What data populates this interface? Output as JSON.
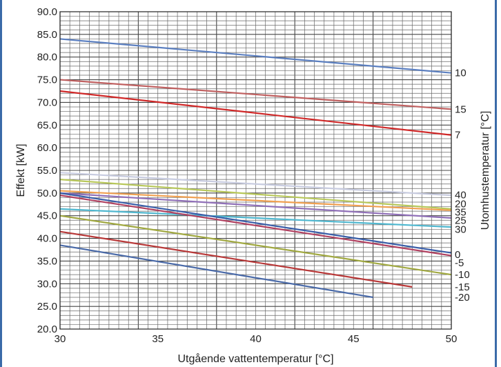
{
  "chart_data": {
    "type": "line",
    "xlabel": "Utgående vattentemperatur [°C]",
    "ylabel": "Effekt  [kW]",
    "right_label": "Utomhustemperatur [°C]",
    "xlim": [
      30,
      50
    ],
    "ylim": [
      20,
      90
    ],
    "x_ticks": [
      "30",
      "35",
      "40",
      "45",
      "50"
    ],
    "y_ticks": [
      "20.0",
      "25.0",
      "30.0",
      "35.0",
      "40.0",
      "45.0",
      "50.0",
      "55.0",
      "60.0",
      "65.0",
      "70.0",
      "75.0",
      "80.0",
      "85.0",
      "90.0"
    ],
    "grid": true,
    "series": [
      {
        "name": "10",
        "color": "#5b7fc0",
        "x": [
          30,
          50
        ],
        "y": [
          84.0,
          76.5
        ]
      },
      {
        "name": "15",
        "color": "#c06060",
        "x": [
          30,
          50
        ],
        "y": [
          75.0,
          68.5
        ]
      },
      {
        "name": "7",
        "color": "#d02828",
        "x": [
          30,
          50
        ],
        "y": [
          72.5,
          62.8
        ]
      },
      {
        "name": "40",
        "color": "#c8cce0",
        "x": [
          30,
          50
        ],
        "y": [
          54.5,
          49.5
        ]
      },
      {
        "name": "20",
        "color": "#b8c85a",
        "x": [
          30,
          50
        ],
        "y": [
          53.0,
          46.5
        ]
      },
      {
        "name": "35",
        "color": "#f0a050",
        "x": [
          30,
          50
        ],
        "y": [
          50.5,
          46.2
        ]
      },
      {
        "name": "25",
        "color": "#9070b8",
        "x": [
          30,
          50
        ],
        "y": [
          50.0,
          44.5
        ]
      },
      {
        "name": "30",
        "color": "#50b8d0",
        "x": [
          30,
          50
        ],
        "y": [
          46.5,
          42.5
        ]
      },
      {
        "name": "0",
        "color": "#3a5ea8",
        "x": [
          30,
          50
        ],
        "y": [
          50.0,
          36.8
        ]
      },
      {
        "name": "-5",
        "color": "#b04060",
        "x": [
          30,
          50
        ],
        "y": [
          49.5,
          36.2
        ]
      },
      {
        "name": "-10",
        "color": "#a0a840",
        "x": [
          30,
          50
        ],
        "y": [
          45.0,
          32.0
        ]
      },
      {
        "name": "-15",
        "color": "#b83838",
        "x": [
          30,
          48
        ],
        "y": [
          41.5,
          29.3
        ]
      },
      {
        "name": "-20",
        "color": "#4a6aa8",
        "x": [
          30,
          46
        ],
        "y": [
          38.5,
          27.0
        ]
      }
    ]
  }
}
